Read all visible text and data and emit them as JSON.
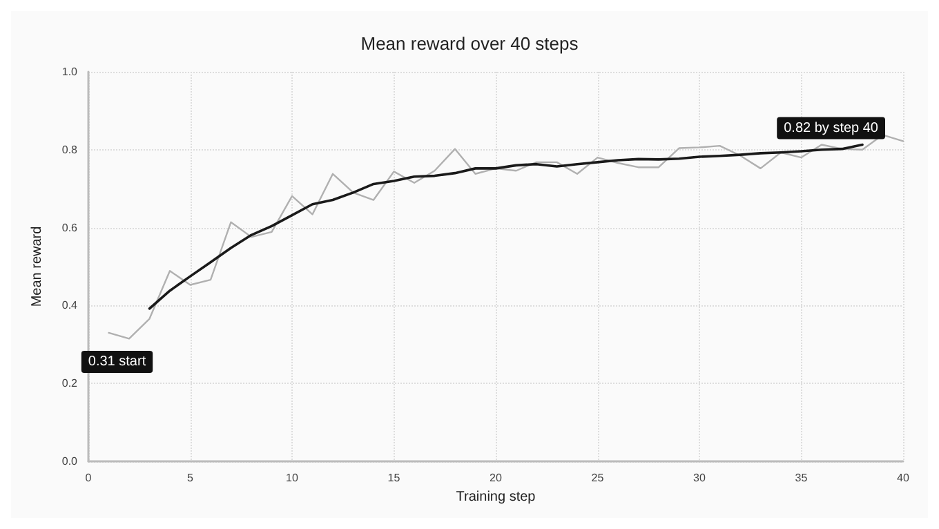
{
  "chart_data": {
    "type": "line",
    "title": "Mean reward over 40 steps",
    "xlabel": "Training step",
    "ylabel": "Mean reward",
    "xlim": [
      0,
      40
    ],
    "xticks": [
      0,
      5,
      10,
      15,
      20,
      25,
      30,
      35,
      40
    ],
    "ylim": [
      0,
      1
    ],
    "yticks": [
      {
        "value": 0,
        "label": "0.0"
      },
      {
        "value": 0.2,
        "label": "0.2"
      },
      {
        "value": 0.4,
        "label": "0.4"
      },
      {
        "value": 0.6,
        "label": "0.6"
      },
      {
        "value": 0.8,
        "label": "0.8"
      },
      {
        "value": 1,
        "label": "1.0"
      }
    ],
    "grid": true,
    "marker": "none",
    "line_style": "solid",
    "series": [
      {
        "color": "#b0b0b0",
        "x": [
          1,
          2,
          3,
          4,
          5,
          6,
          7,
          8,
          9,
          10,
          11,
          12,
          13,
          14,
          15,
          16,
          17,
          18,
          19,
          20,
          21,
          22,
          23,
          24,
          25,
          26,
          27,
          28,
          29,
          30,
          31,
          32,
          33,
          34,
          35,
          36,
          37,
          38,
          39,
          40
        ],
        "values": [
          0.33,
          0.315,
          0.366,
          0.489,
          0.453,
          0.466,
          0.614,
          0.576,
          0.589,
          0.681,
          0.634,
          0.738,
          0.69,
          0.671,
          0.744,
          0.715,
          0.746,
          0.802,
          0.738,
          0.752,
          0.746,
          0.768,
          0.768,
          0.738,
          0.78,
          0.766,
          0.755,
          0.755,
          0.804,
          0.806,
          0.81,
          0.785,
          0.752,
          0.793,
          0.78,
          0.813,
          0.802,
          0.8,
          0.838,
          0.822
        ]
      },
      {
        "color": "#1a1a1a",
        "x": [
          3,
          4,
          5,
          6,
          7,
          8,
          9,
          10,
          11,
          12,
          13,
          14,
          15,
          16,
          17,
          18,
          19,
          20,
          21,
          22,
          23,
          24,
          25,
          26,
          27,
          28,
          29,
          30,
          31,
          32,
          33,
          34,
          35,
          36,
          37,
          38
        ],
        "values": [
          0.392,
          0.438,
          0.475,
          0.511,
          0.548,
          0.581,
          0.604,
          0.632,
          0.66,
          0.671,
          0.69,
          0.712,
          0.72,
          0.731,
          0.733,
          0.74,
          0.752,
          0.752,
          0.76,
          0.763,
          0.757,
          0.763,
          0.768,
          0.773,
          0.776,
          0.775,
          0.777,
          0.782,
          0.784,
          0.787,
          0.791,
          0.793,
          0.796,
          0.8,
          0.802,
          0.813
        ]
      }
    ],
    "annotations": [
      {
        "text": "0.31 start",
        "x": 1,
        "y": 0.33
      },
      {
        "text": "0.82 by step 40",
        "x": 40,
        "y": 0.82
      }
    ]
  }
}
